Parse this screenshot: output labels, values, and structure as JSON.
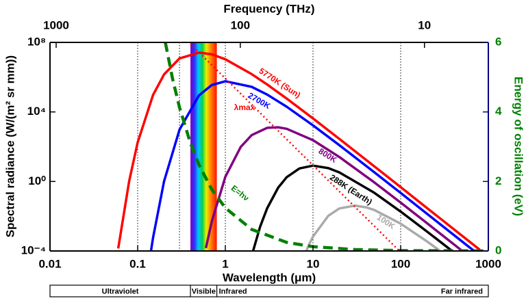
{
  "chart_data": {
    "type": "line",
    "x_label": "Wavelength (μm)",
    "x2_label": "Frequency (THz)",
    "y_label": "Spectral radiance (W/(m² sr mm))",
    "y2_label": "Energy of oscillation (eV)",
    "xscale": "log",
    "yscale": "log",
    "x2scale": "log",
    "xlim": [
      0.01,
      1000
    ],
    "xticks": [
      0.01,
      0.1,
      1,
      10,
      100,
      1000
    ],
    "x2lim": [
      1080,
      4.5
    ],
    "x2ticks": [
      1000,
      100,
      10
    ],
    "ylim": [
      0.0001,
      100000000
    ],
    "yticks": [
      {
        "value": 0.0001,
        "label": "10⁻⁴"
      },
      {
        "value": 1,
        "label": "10⁰"
      },
      {
        "value": 10000,
        "label": "10⁴"
      },
      {
        "value": 100000000,
        "label": "10⁸"
      }
    ],
    "y2lim": [
      0,
      6
    ],
    "y2ticks": [
      0,
      2,
      4,
      6
    ],
    "y2color": "#008000",
    "x_dotted_lines": [
      0.1,
      0.3,
      1,
      10,
      100
    ],
    "spectrum_band": [
      0.4,
      0.8
    ],
    "region_labels": [
      "Ultraviolet",
      "Visible",
      "Infrared",
      "Far infrared"
    ],
    "series": [
      {
        "name": "5770K (Sun)",
        "color": "#ff0000",
        "linestyle": "solid",
        "x": [
          0.06,
          0.08,
          0.1,
          0.15,
          0.2,
          0.3,
          0.5,
          0.7,
          1,
          2,
          3,
          5,
          10,
          20,
          50,
          100,
          200,
          500,
          800
        ],
        "values": [
          0.00014,
          1.05,
          175,
          95000,
          1430000,
          12000000,
          26000000,
          20700000,
          10700000,
          1500000,
          378000,
          59000,
          4200,
          280,
          7.45,
          0.472,
          0.0296,
          0.000764,
          0.000117
        ]
      },
      {
        "name": "2700K",
        "color": "#0000ff",
        "linestyle": "solid",
        "x": [
          0.14,
          0.15,
          0.2,
          0.3,
          0.5,
          0.7,
          1,
          2,
          3,
          5,
          10,
          20,
          50,
          100,
          200,
          500,
          700
        ],
        "values": [
          6.5e-05,
          0.00059,
          1.0,
          950,
          89000,
          350000,
          580000,
          278000,
          100000,
          20000,
          1692,
          122,
          3.39,
          0.218,
          0.0138,
          0.000357,
          9.3e-05
        ]
      },
      {
        "name": "800K",
        "color": "#800080",
        "linestyle": "solid",
        "x": [
          0.6,
          0.7,
          1,
          1.5,
          2,
          3,
          4,
          5,
          10,
          20,
          50,
          100,
          200,
          500
        ],
        "values": [
          0.000146,
          0.0049,
          1.84,
          97,
          463,
          1220,
          1310,
          1073,
          236,
          25.5,
          0.88,
          0.0605,
          0.00395,
          0.000104
        ]
      },
      {
        "name": "288K (Earth)",
        "color": "#000000",
        "linestyle": "solid",
        "x": [
          2,
          2.5,
          3,
          4,
          5,
          7,
          10,
          15,
          20,
          50,
          100,
          200,
          400
        ],
        "values": [
          5.3e-05,
          0.00256,
          0.0288,
          0.437,
          1.75,
          5.63,
          8.1,
          5.84,
          3.33,
          0.222,
          0.0184,
          0.00131,
          8.7e-05
        ]
      },
      {
        "name": "100K",
        "color": "#aaaaaa",
        "linestyle": "solid",
        "x": [
          8,
          9,
          10,
          15,
          20,
          30,
          40,
          50,
          100,
          200,
          300
        ],
        "values": [
          5.6e-05,
          0.00023,
          0.00067,
          0.0107,
          0.028,
          0.0408,
          0.0328,
          0.0227,
          0.0037,
          0.000353,
          8e-05
        ]
      },
      {
        "name": "λmax",
        "color": "#ff0000",
        "linestyle": "dotted",
        "x": [
          0.4,
          95
        ],
        "values": [
          82000000,
          0.00011
        ]
      },
      {
        "name": "E=hν",
        "color": "#008000",
        "linestyle": "dashed",
        "axis": "y2",
        "x": [
          0.207,
          0.25,
          0.3,
          0.4,
          0.5,
          0.7,
          1,
          2,
          5,
          10,
          30,
          100,
          1000
        ],
        "values": [
          6,
          4.96,
          4.13,
          3.1,
          2.48,
          1.77,
          1.24,
          0.62,
          0.248,
          0.124,
          0.041,
          0.0124,
          0.00124
        ]
      }
    ]
  }
}
